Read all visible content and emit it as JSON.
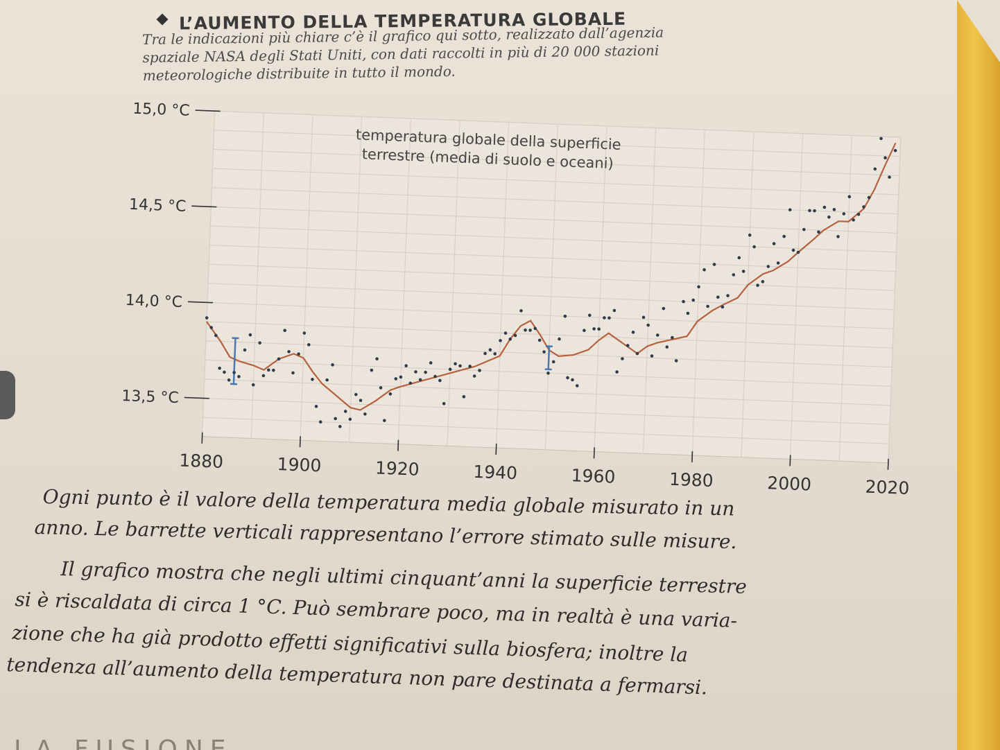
{
  "heading": "L’AUMENTO DELLA TEMPERATURA GLOBALE",
  "intro_lines": [
    "Tra le indicazioni più chiare c’è il grafico qui sotto, realizzato dall’agenzia",
    "spaziale NASA degli Stati Uniti, con dati raccolti in più di 20 000 stazioni",
    "meteorologiche distribuite in tutto il mondo."
  ],
  "chart_data": {
    "type": "line",
    "annotation": [
      "temperatura globale della superficie",
      "terrestre (media di suolo e oceani)"
    ],
    "xlim": [
      1880,
      2020
    ],
    "ylim": [
      13.3,
      15.0
    ],
    "x_ticks": [
      "1880",
      "1900",
      "1920",
      "1940",
      "1960",
      "1980",
      "2000",
      "2020"
    ],
    "y_ticks": [
      "15,0 °C",
      "14,5 °C",
      "14,0 °C",
      "13,5 °C"
    ],
    "x_tick_values": [
      1880,
      1900,
      1920,
      1940,
      1960,
      1980,
      2000,
      2020
    ],
    "y_tick_values": [
      15.0,
      14.5,
      14.0,
      13.5
    ],
    "grid": true,
    "colors": {
      "trend": "#b5613d",
      "points": "#2f3a4a",
      "error_bar": "#4a78b0",
      "grid": "#d8d0c6",
      "plot_bg": "#ebe5dc"
    },
    "points": {
      "x": [
        1880,
        1881,
        1882,
        1883,
        1884,
        1885,
        1886,
        1887,
        1888,
        1889,
        1890,
        1891,
        1892,
        1893,
        1894,
        1895,
        1896,
        1897,
        1898,
        1899,
        1900,
        1901,
        1902,
        1903,
        1904,
        1905,
        1906,
        1907,
        1908,
        1909,
        1910,
        1911,
        1912,
        1913,
        1914,
        1915,
        1916,
        1917,
        1918,
        1919,
        1920,
        1921,
        1922,
        1923,
        1924,
        1925,
        1926,
        1927,
        1928,
        1929,
        1930,
        1931,
        1932,
        1933,
        1934,
        1935,
        1936,
        1937,
        1938,
        1939,
        1940,
        1941,
        1942,
        1943,
        1944,
        1945,
        1946,
        1947,
        1948,
        1949,
        1950,
        1951,
        1952,
        1953,
        1954,
        1955,
        1956,
        1957,
        1958,
        1959,
        1960,
        1961,
        1962,
        1963,
        1964,
        1965,
        1966,
        1967,
        1968,
        1969,
        1970,
        1971,
        1972,
        1973,
        1974,
        1975,
        1976,
        1977,
        1978,
        1979,
        1980,
        1981,
        1982,
        1983,
        1984,
        1985,
        1986,
        1987,
        1988,
        1989,
        1990,
        1991,
        1992,
        1993,
        1994,
        1995,
        1996,
        1997,
        1998,
        1999,
        2000,
        2001,
        2002,
        2003,
        2004,
        2005,
        2006,
        2007,
        2008,
        2009,
        2010,
        2011,
        2012,
        2013,
        2014,
        2015,
        2016,
        2017,
        2018,
        2019
      ],
      "y": [
        13.92,
        13.87,
        13.83,
        13.66,
        13.64,
        13.6,
        13.64,
        13.62,
        13.76,
        13.84,
        13.58,
        13.8,
        13.63,
        13.66,
        13.66,
        13.72,
        13.87,
        13.76,
        13.65,
        13.75,
        13.86,
        13.8,
        13.62,
        13.48,
        13.4,
        13.62,
        13.7,
        13.42,
        13.38,
        13.46,
        13.42,
        13.55,
        13.52,
        13.45,
        13.68,
        13.74,
        13.59,
        13.42,
        13.56,
        13.64,
        13.65,
        13.71,
        13.62,
        13.68,
        13.64,
        13.68,
        13.73,
        13.66,
        13.64,
        13.52,
        13.7,
        13.73,
        13.72,
        13.56,
        13.72,
        13.67,
        13.7,
        13.79,
        13.81,
        13.79,
        13.86,
        13.9,
        13.87,
        13.89,
        14.02,
        13.92,
        13.92,
        13.93,
        13.87,
        13.81,
        13.7,
        13.76,
        13.88,
        14.0,
        13.68,
        13.67,
        13.64,
        13.93,
        14.01,
        13.94,
        13.94,
        14.0,
        14.0,
        14.04,
        13.72,
        13.79,
        13.86,
        13.93,
        13.82,
        14.01,
        13.97,
        13.81,
        13.92,
        14.06,
        13.86,
        13.91,
        13.79,
        14.1,
        14.04,
        14.11,
        14.18,
        14.27,
        14.08,
        14.3,
        14.13,
        14.08,
        14.14,
        14.25,
        14.34,
        14.27,
        14.46,
        14.4,
        14.2,
        14.22,
        14.3,
        14.42,
        14.32,
        14.46,
        14.6,
        14.39,
        14.38,
        14.5,
        14.6,
        14.6,
        14.49,
        14.62,
        14.57,
        14.61,
        14.47,
        14.59,
        14.68,
        14.56,
        14.59,
        14.63,
        14.68,
        14.83,
        14.99,
        14.89,
        14.79,
        14.93
      ]
    },
    "trend": {
      "x": [
        1880,
        1883,
        1885,
        1887,
        1890,
        1892,
        1895,
        1898,
        1900,
        1902,
        1904,
        1906,
        1908,
        1910,
        1912,
        1915,
        1918,
        1920,
        1925,
        1930,
        1935,
        1940,
        1942,
        1944,
        1946,
        1948,
        1950,
        1952,
        1955,
        1958,
        1960,
        1962,
        1965,
        1968,
        1970,
        1972,
        1975,
        1978,
        1980,
        1983,
        1985,
        1988,
        1990,
        1993,
        1995,
        1998,
        2000,
        2003,
        2005,
        2008,
        2010,
        2013,
        2015,
        2017,
        2019
      ],
      "y": [
        13.9,
        13.8,
        13.72,
        13.7,
        13.68,
        13.66,
        13.72,
        13.75,
        13.73,
        13.66,
        13.6,
        13.56,
        13.52,
        13.48,
        13.47,
        13.52,
        13.58,
        13.6,
        13.64,
        13.68,
        13.72,
        13.78,
        13.87,
        13.94,
        13.97,
        13.9,
        13.82,
        13.79,
        13.8,
        13.83,
        13.88,
        13.92,
        13.87,
        13.82,
        13.86,
        13.88,
        13.9,
        13.92,
        14.0,
        14.06,
        14.09,
        14.13,
        14.2,
        14.26,
        14.28,
        14.33,
        14.38,
        14.45,
        14.5,
        14.55,
        14.55,
        14.62,
        14.72,
        14.85,
        14.97
      ]
    },
    "error_bars": [
      {
        "x": 1886,
        "low": 13.58,
        "high": 13.82
      },
      {
        "x": 1950,
        "low": 13.72,
        "high": 13.84
      }
    ]
  },
  "caption_lines": [
    "Ogni punto è il valore della temperatura media globale misurato in un",
    "anno. Le barrette verticali rappresentano l’errore stimato sulle misure.",
    "Il grafico mostra che negli ultimi cinquant’anni la superficie terrestre",
    "si è riscaldata di circa 1 °C. Può sembrare poco, ma in realtà è una varia-",
    "zione che ha già prodotto effetti significativi sulla biosfera; inoltre la",
    "tendenza all’aumento della temperatura non pare destinata a fermarsi."
  ],
  "bottom_fragment": "LA FUSIONE"
}
